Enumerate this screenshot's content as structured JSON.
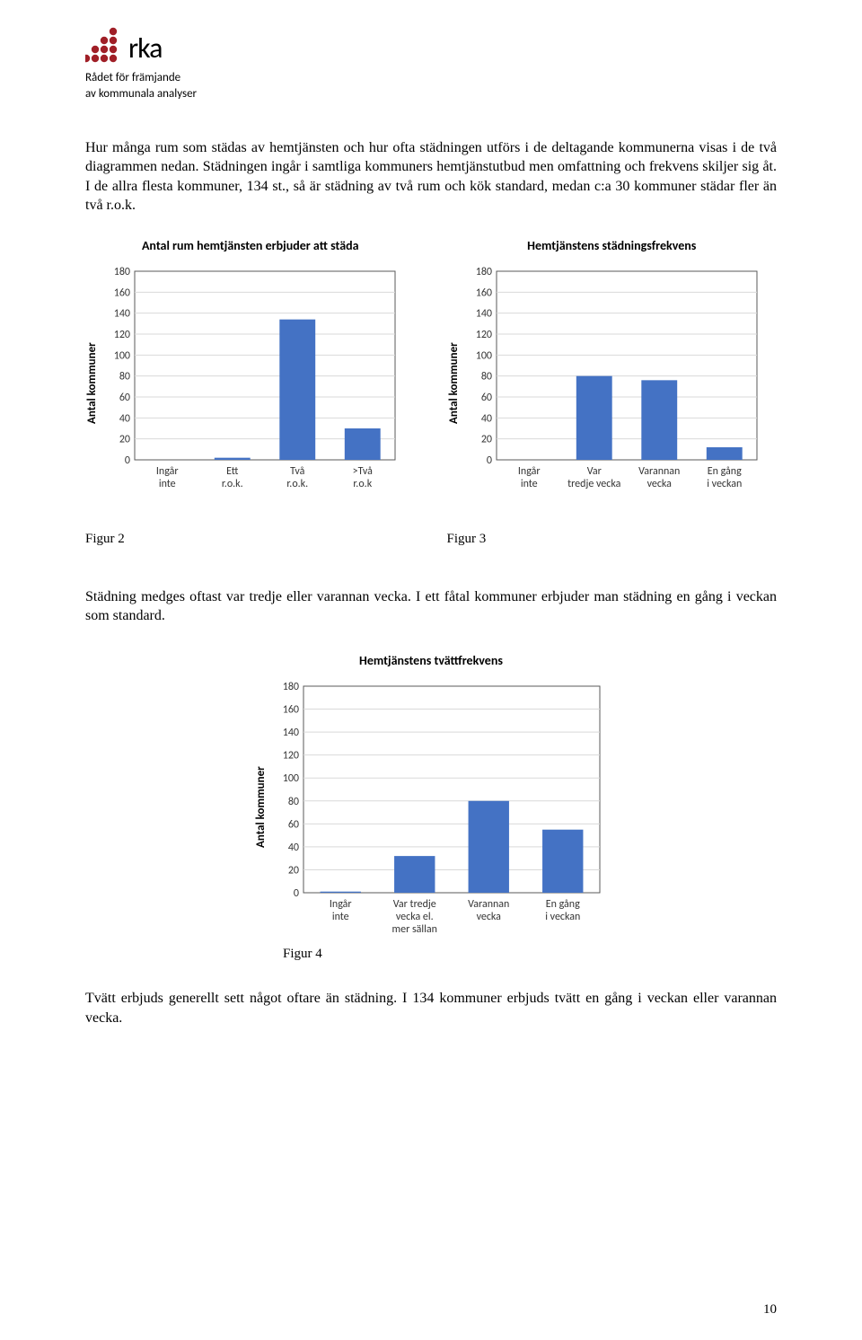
{
  "logo": {
    "name": "rka",
    "sub_line1": "Rådet för främjande",
    "sub_line2": "av kommunala analyser",
    "dot_color": "#a01f27"
  },
  "para1": "Hur många rum som städas av hemtjänsten och hur ofta städningen utförs i de deltagande kommunerna visas i de två diagrammen nedan. Städningen ingår i samtliga kommuners hemtjänstutbud men omfattning och frekvens skiljer sig åt. I de allra flesta kommuner, 134 st., så är städning av två rum och kök standard, medan c:a 30 kommuner städar fler än två r.o.k.",
  "para2": "Städning medges oftast var tredje eller varannan vecka. I ett fåtal kommuner erbjuder man städning en gång i veckan som standard.",
  "para3": "Tvätt erbjuds generellt sett något oftare än städning. I 134 kommuner erbjuds tvätt en gång i veckan eller varannan vecka.",
  "fig2_label": "Figur 2",
  "fig3_label": "Figur 3",
  "fig4_label": "Figur 4",
  "chart1": {
    "title": "Antal rum hemtjänsten erbjuder att städa",
    "ylabel": "Antal kommuner",
    "ymax": 180,
    "ytick_step": 20,
    "categories": [
      "Ingår inte",
      "Ett r.o.k.",
      "Två r.o.k.",
      ">Två r.o.k"
    ],
    "values": [
      0,
      2,
      134,
      30
    ],
    "bar_color": "#4472c4",
    "grid_color": "#d9d9d9",
    "plot_bg": "#ffffff",
    "border_color": "#595959",
    "label_fontsize": 13,
    "tick_fontsize": 12
  },
  "chart2": {
    "title": "Hemtjänstens städningsfrekvens",
    "ylabel": "Antal kommuner",
    "ymax": 180,
    "ytick_step": 20,
    "categories": [
      "Ingår inte",
      "Var tredje vecka",
      "Varannan vecka",
      "En gång i veckan"
    ],
    "values": [
      0,
      80,
      76,
      12
    ],
    "bar_color": "#4472c4",
    "grid_color": "#d9d9d9",
    "plot_bg": "#ffffff",
    "border_color": "#595959",
    "label_fontsize": 13,
    "tick_fontsize": 12
  },
  "chart3": {
    "title": "Hemtjänstens tvättfrekvens",
    "ylabel": "Antal kommuner",
    "ymax": 180,
    "ytick_step": 20,
    "categories": [
      "Ingår inte",
      "Var tredje vecka el. mer sällan",
      "Varannan vecka",
      "En gång i veckan"
    ],
    "values": [
      1,
      32,
      80,
      55
    ],
    "bar_color": "#4472c4",
    "grid_color": "#d9d9d9",
    "plot_bg": "#ffffff",
    "border_color": "#595959",
    "label_fontsize": 13,
    "tick_fontsize": 12
  },
  "page_number": "10"
}
